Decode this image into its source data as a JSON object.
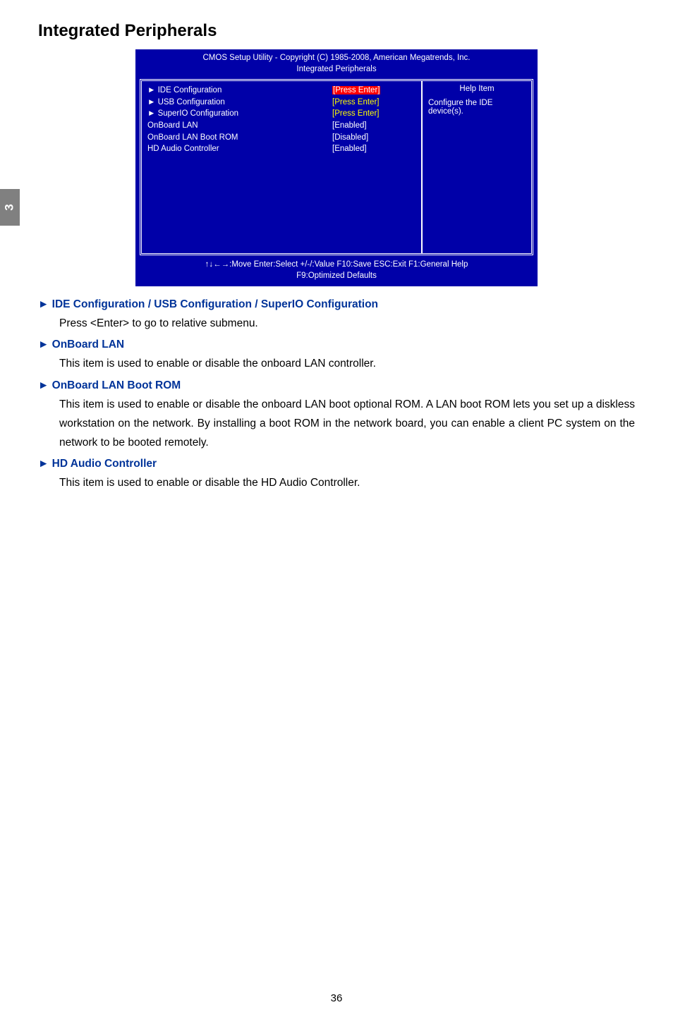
{
  "sideTab": "3",
  "pageTitle": "Integrated Peripherals",
  "bios": {
    "header1": "CMOS Setup Utility - Copyright (C) 1985-2008, American Megatrends, Inc.",
    "header2": "Integrated Peripherals",
    "rows": [
      {
        "marker": "►",
        "label": "IDE Configuration",
        "value": "[Press Enter]",
        "valueClass": "highlight-red-bg"
      },
      {
        "marker": "►",
        "label": "USB Configuration",
        "value": "[Press Enter]",
        "valueClass": "highlight-yellow"
      },
      {
        "marker": "►",
        "label": "SuperIO Configuration",
        "value": "[Press Enter]",
        "valueClass": "highlight-yellow"
      },
      {
        "marker": "",
        "label": "OnBoard LAN",
        "value": "[Enabled]",
        "valueClass": "highlight-white"
      },
      {
        "marker": "",
        "label": "OnBoard LAN Boot ROM",
        "value": "[Disabled]",
        "valueClass": "highlight-white"
      },
      {
        "marker": "",
        "label": "HD Audio Controller",
        "value": "[Enabled]",
        "valueClass": "highlight-white"
      }
    ],
    "helpTitle": "Help Item",
    "helpText": "Configure the IDE device(s).",
    "footer1": "↑↓←→:Move   Enter:Select    +/-/:Value    F10:Save     ESC:Exit    F1:General Help",
    "footer2": "F9:Optimized Defaults"
  },
  "doc": {
    "h1": "► IDE Configuration / USB Configuration / SuperIO Configuration",
    "p1": "Press <Enter> to go to relative submenu.",
    "h2": "► OnBoard LAN",
    "p2": "This item is used to enable or disable the onboard LAN controller.",
    "h3": "► OnBoard LAN Boot ROM",
    "p3": "This item is used to enable or disable the onboard LAN boot optional ROM. A LAN boot ROM lets you set up a diskless workstation on the network. By installing a boot ROM in the network board, you can enable a client PC system on the network to be booted remotely.",
    "h4": "► HD Audio Controller",
    "p4": "This item is used to enable or disable the HD Audio Controller."
  },
  "pageNumber": "36"
}
